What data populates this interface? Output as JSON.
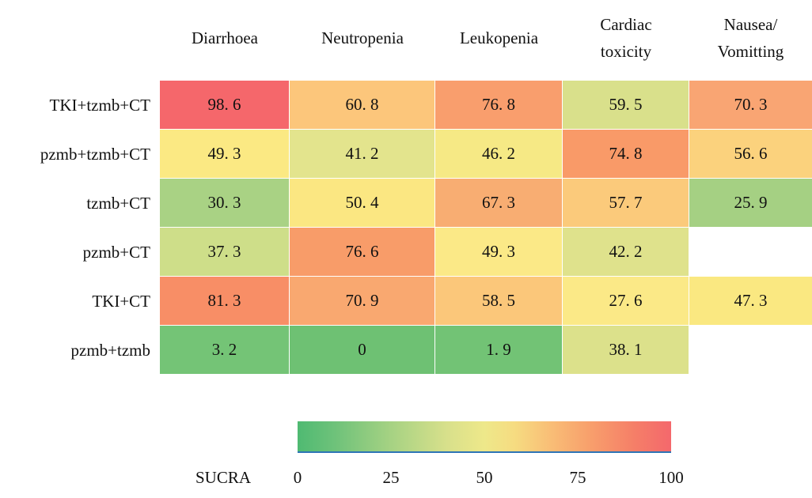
{
  "chart_data": {
    "type": "heatmap",
    "title": "",
    "columns": [
      "Diarrhoea",
      "Neutropenia",
      "Leukopenia",
      "Cardiac\ntoxicity",
      "Nausea/\nVomitting"
    ],
    "rows": [
      "TKI+tzmb+CT",
      "pzmb+tzmb+CT",
      "tzmb+CT",
      "pzmb+CT",
      "TKI+CT",
      "pzmb+tzmb"
    ],
    "values": [
      [
        98.6,
        60.8,
        76.8,
        59.5,
        70.3
      ],
      [
        49.3,
        41.2,
        46.2,
        74.8,
        56.6
      ],
      [
        30.3,
        50.4,
        67.3,
        57.7,
        25.9
      ],
      [
        37.3,
        76.6,
        49.3,
        42.2,
        null
      ],
      [
        81.3,
        70.9,
        58.5,
        27.6,
        47.3
      ],
      [
        3.2,
        0,
        1.9,
        38.1,
        null
      ]
    ],
    "cell_colors": [
      [
        "#f5676b",
        "#fcc67b",
        "#f99e6d",
        "#d9e08b",
        "#f9a573"
      ],
      [
        "#fbe983",
        "#e3e48d",
        "#f6e985",
        "#f99a68",
        "#fbd27d"
      ],
      [
        "#a9d284",
        "#fbe782",
        "#f8ad72",
        "#fbca7b",
        "#a5d083"
      ],
      [
        "#cede89",
        "#f89c69",
        "#fbe987",
        "#dfe28c",
        null
      ],
      [
        "#f88e66",
        "#f9a870",
        "#fbc77a",
        "#fbe987",
        "#fae881"
      ],
      [
        "#74c476",
        "#6ec173",
        "#72c375",
        "#dce18b",
        null
      ]
    ],
    "decimal_style": ". ",
    "legend": {
      "label": "SUCRA",
      "ticks": [
        "0",
        "25",
        "50",
        "75",
        "100"
      ],
      "gradient_stops": [
        "#4fba72 0%",
        "#6ec27a 10%",
        "#a6d283 25%",
        "#d8e08b 40%",
        "#eee88a 50%",
        "#f6dc81 58%",
        "#f9bd76 68%",
        "#f8a06c 78%",
        "#f57f68 90%",
        "#f4686c 100%"
      ],
      "underline_color": "#2e75b6",
      "range": [
        0,
        100
      ],
      "position": "bottom"
    }
  }
}
